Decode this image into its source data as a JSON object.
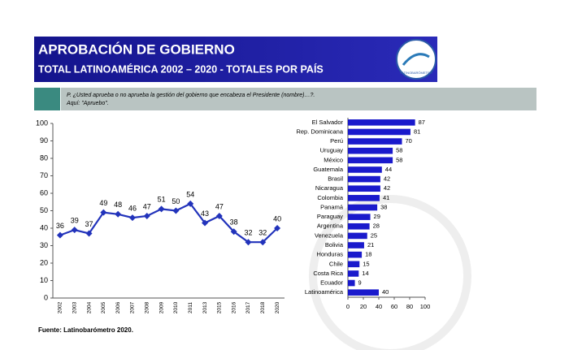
{
  "header": {
    "title": "APROBACIÓN DE GOBIERNO",
    "subtitle": "TOTAL LATINOAMÉRICA 2002 – 2020 - TOTALES POR PAÍS",
    "logo": "LATINOBARÓMETRO"
  },
  "question": {
    "line1": "P. ¿Usted aprueba o no aprueba la gestión del gobierno que encabeza el Presidente (nombre)…?.",
    "line2": "Aquí: \"Apruebo\"."
  },
  "source": "Fuente: Latinobarómetro 2020.",
  "chart_data": [
    {
      "type": "line",
      "color": "#2233bb",
      "categories": [
        "2002",
        "2003",
        "2004",
        "2005",
        "2006",
        "2007",
        "2008",
        "2009",
        "2010",
        "2011",
        "2013",
        "2015",
        "2016",
        "2017",
        "2018",
        "2020"
      ],
      "values": [
        36,
        39,
        37,
        49,
        48,
        46,
        47,
        51,
        50,
        54,
        43,
        47,
        38,
        32,
        32,
        40
      ],
      "ylim": [
        0,
        100
      ],
      "yticks": [
        0,
        10,
        20,
        30,
        40,
        50,
        60,
        70,
        80,
        90,
        100
      ]
    },
    {
      "type": "hbar",
      "color": "#1a1acc",
      "categories": [
        "El Salvador",
        "Rep. Dominicana",
        "Perú",
        "Uruguay",
        "México",
        "Guatemala",
        "Brasil",
        "Nicaragua",
        "Colombia",
        "Panamá",
        "Paraguay",
        "Argentina",
        "Venezuela",
        "Bolivia",
        "Honduras",
        "Chile",
        "Costa Rica",
        "Ecuador",
        "Latinoamérica"
      ],
      "values": [
        87,
        81,
        70,
        58,
        58,
        44,
        42,
        42,
        41,
        38,
        29,
        28,
        25,
        21,
        18,
        15,
        14,
        9,
        40
      ],
      "xlim": [
        0,
        100
      ],
      "xticks": [
        0,
        20,
        40,
        60,
        80,
        100
      ]
    }
  ]
}
